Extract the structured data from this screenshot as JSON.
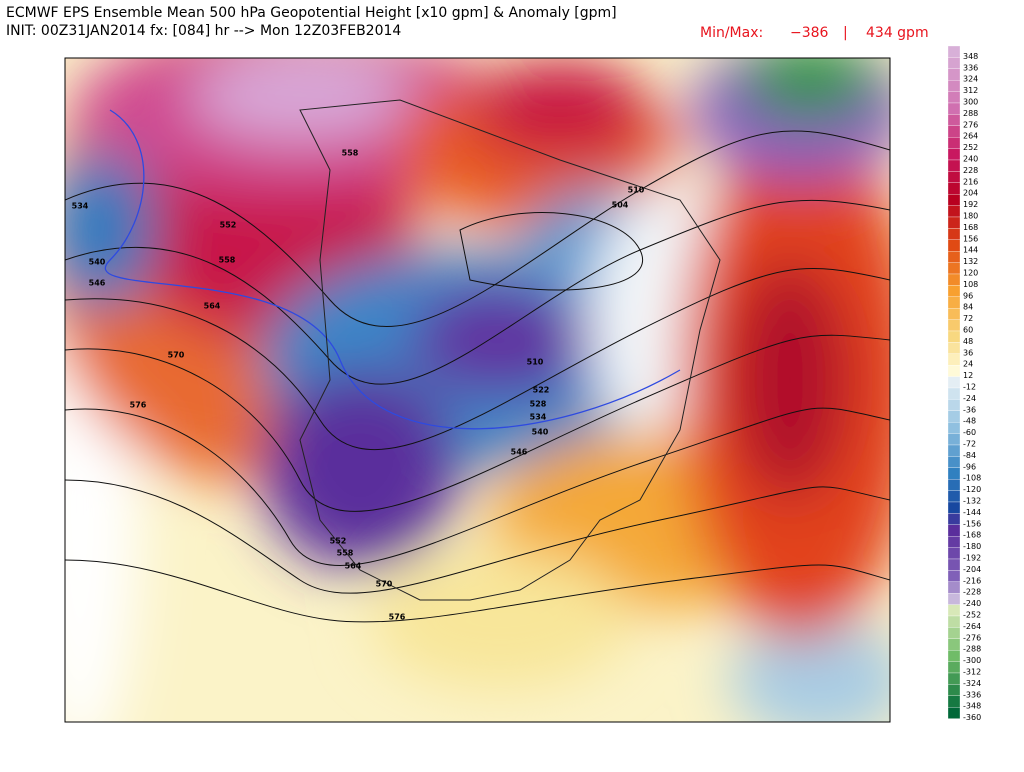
{
  "header": {
    "title": "ECMWF EPS Ensemble Mean 500 hPa Geopotential Height [x10 gpm] & Anomaly [gpm]",
    "init": "INIT: 00Z31JAN2014 fx: [084] hr --> Mon 12Z03FEB2014",
    "min_max": {
      "label": "Min/Max:",
      "min": "−386",
      "separator": "|",
      "max": "434 gpm"
    }
  },
  "colorbar": {
    "labels": [
      "348",
      "336",
      "324",
      "312",
      "300",
      "288",
      "276",
      "264",
      "252",
      "240",
      "228",
      "216",
      "204",
      "192",
      "180",
      "168",
      "156",
      "144",
      "132",
      "120",
      "108",
      "96",
      "84",
      "72",
      "60",
      "48",
      "36",
      "24",
      "12",
      "-12",
      "-24",
      "-36",
      "-48",
      "-60",
      "-72",
      "-84",
      "-96",
      "-108",
      "-120",
      "-132",
      "-144",
      "-156",
      "-168",
      "-180",
      "-192",
      "-204",
      "-216",
      "-228",
      "-240",
      "-252",
      "-264",
      "-276",
      "-288",
      "-300",
      "-312",
      "-324",
      "-336",
      "-348",
      "-360"
    ]
  },
  "contour_labels": [
    "534",
    "540",
    "546",
    "552",
    "558",
    "564",
    "570",
    "576",
    "558",
    "510",
    "504",
    "510",
    "522",
    "528",
    "534",
    "540",
    "546",
    "552",
    "558",
    "564",
    "570",
    "576"
  ]
}
